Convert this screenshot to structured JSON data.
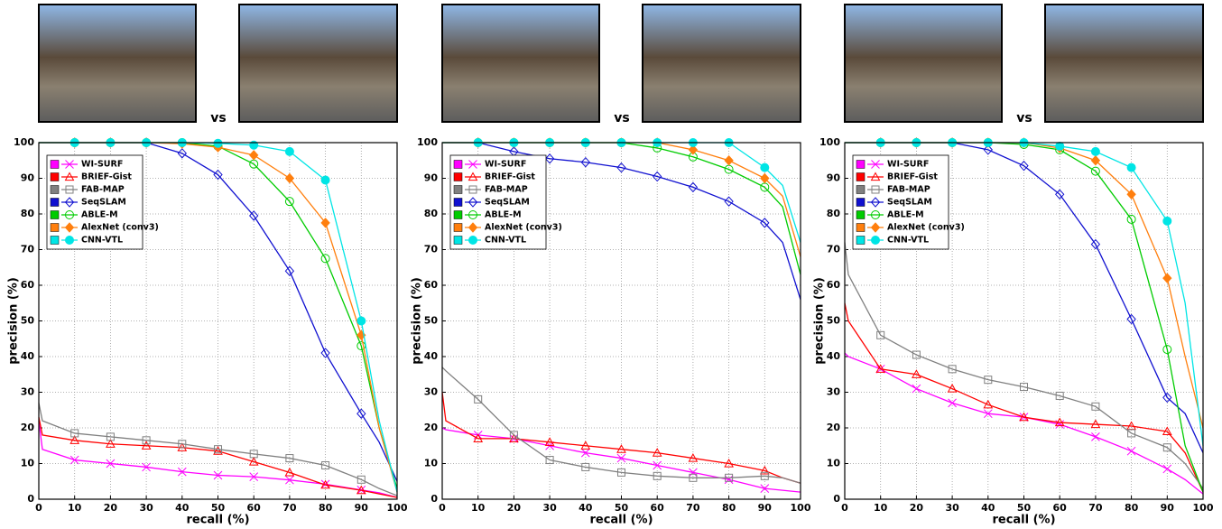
{
  "chart_data": [
    {
      "type": "line",
      "vs_label": "vs",
      "xlabel": "recall (%)",
      "ylabel": "precision (%)",
      "xlim": [
        0,
        100
      ],
      "ylim": [
        0,
        100
      ],
      "xticks": [
        0,
        10,
        20,
        30,
        40,
        50,
        60,
        70,
        80,
        90,
        100
      ],
      "yticks": [
        0,
        10,
        20,
        30,
        40,
        50,
        60,
        70,
        80,
        90,
        100
      ],
      "grid": true,
      "legend": "upper left",
      "x": [
        0,
        1,
        10,
        20,
        30,
        40,
        50,
        60,
        70,
        80,
        90,
        95,
        100
      ],
      "series": [
        {
          "name": "WI-SURF",
          "color": "#ff00ff",
          "marker": "x",
          "values": [
            22,
            14,
            11,
            10,
            9,
            7.7,
            6.7,
            6.3,
            5.4,
            4.2,
            2.6,
            1.8,
            0.5
          ]
        },
        {
          "name": "BRIEF-Gist",
          "color": "#ff0000",
          "marker": "triangle",
          "values": [
            23,
            18,
            16.5,
            15.5,
            15,
            14.5,
            13.5,
            10.5,
            7.5,
            4,
            2.5,
            1.5,
            0.5
          ]
        },
        {
          "name": "FAB-MAP",
          "color": "#808080",
          "marker": "square",
          "values": [
            27,
            22,
            18.5,
            17.5,
            16.5,
            15.5,
            14,
            12.7,
            11.5,
            9.5,
            5.5,
            3,
            1
          ]
        },
        {
          "name": "SeqSLAM",
          "color": "#1010d0",
          "marker": "diamond",
          "values": [
            100,
            100,
            100,
            100,
            100,
            97,
            91,
            79.5,
            64,
            41,
            24,
            16,
            5
          ]
        },
        {
          "name": "ABLE-M",
          "color": "#00cc00",
          "marker": "circle",
          "values": [
            100,
            100,
            100,
            100,
            100,
            100,
            99,
            94,
            83.5,
            67.5,
            43,
            20,
            3
          ]
        },
        {
          "name": "AlexNet (conv3)",
          "color": "#ff7f0e",
          "marker": "diamond-filled",
          "values": [
            100,
            100,
            100,
            100,
            100,
            99.7,
            98.7,
            96.5,
            90,
            77.5,
            46,
            20,
            2
          ]
        },
        {
          "name": "CNN-VTL",
          "color": "#00e5e5",
          "marker": "circle-filled",
          "values": [
            100,
            100,
            100,
            100,
            100,
            100,
            99.8,
            99.3,
            97.5,
            89.5,
            50,
            22,
            2
          ]
        }
      ]
    },
    {
      "type": "line",
      "vs_label": "vs",
      "xlabel": "recall (%)",
      "ylabel": "precision (%)",
      "xlim": [
        0,
        100
      ],
      "ylim": [
        0,
        100
      ],
      "xticks": [
        0,
        10,
        20,
        30,
        40,
        50,
        60,
        70,
        80,
        90,
        100
      ],
      "yticks": [
        0,
        10,
        20,
        30,
        40,
        50,
        60,
        70,
        80,
        90,
        100
      ],
      "grid": true,
      "legend": "upper left",
      "x": [
        0,
        1,
        10,
        20,
        30,
        40,
        50,
        60,
        70,
        80,
        90,
        95,
        100
      ],
      "series": [
        {
          "name": "WI-SURF",
          "color": "#ff00ff",
          "marker": "x",
          "values": [
            20,
            19.5,
            18,
            17,
            15,
            13,
            11.5,
            9.5,
            7.5,
            5.5,
            3,
            2.5,
            2
          ]
        },
        {
          "name": "BRIEF-Gist",
          "color": "#ff0000",
          "marker": "triangle",
          "values": [
            30,
            22,
            17,
            17,
            16,
            15,
            14,
            13,
            11.5,
            10,
            8,
            6,
            4.5
          ]
        },
        {
          "name": "FAB-MAP",
          "color": "#808080",
          "marker": "square",
          "values": [
            37,
            36,
            28,
            18,
            11,
            9,
            7.5,
            6.5,
            6,
            6,
            6.5,
            6,
            4.5
          ]
        },
        {
          "name": "SeqSLAM",
          "color": "#1010d0",
          "marker": "diamond",
          "values": [
            100,
            100,
            100,
            97.5,
            95.5,
            94.5,
            93,
            90.5,
            87.5,
            83.5,
            77.5,
            72,
            56
          ]
        },
        {
          "name": "ABLE-M",
          "color": "#00cc00",
          "marker": "circle",
          "values": [
            100,
            100,
            100,
            100,
            100,
            100,
            100,
            98.5,
            96,
            92.5,
            87.5,
            82,
            63
          ]
        },
        {
          "name": "AlexNet (conv3)",
          "color": "#ff7f0e",
          "marker": "diamond-filled",
          "values": [
            100,
            100,
            100,
            100,
            100,
            100,
            100,
            100,
            98,
            95,
            90,
            85,
            68
          ]
        },
        {
          "name": "CNN-VTL",
          "color": "#00e5e5",
          "marker": "circle-filled",
          "values": [
            100,
            100,
            100,
            100,
            100,
            100,
            100,
            100,
            100,
            100,
            93,
            88,
            72
          ]
        }
      ]
    },
    {
      "type": "line",
      "vs_label": "vs",
      "xlabel": "recall (%)",
      "ylabel": "precision (%)",
      "xlim": [
        0,
        100
      ],
      "ylim": [
        0,
        100
      ],
      "xticks": [
        0,
        10,
        20,
        30,
        40,
        50,
        60,
        70,
        80,
        90,
        100
      ],
      "yticks": [
        0,
        10,
        20,
        30,
        40,
        50,
        60,
        70,
        80,
        90,
        100
      ],
      "grid": true,
      "legend": "upper left",
      "x": [
        0,
        1,
        10,
        20,
        30,
        40,
        50,
        60,
        70,
        80,
        90,
        95,
        100
      ],
      "series": [
        {
          "name": "WI-SURF",
          "color": "#ff00ff",
          "marker": "x",
          "values": [
            41,
            40,
            36.5,
            31,
            27,
            24,
            23,
            21,
            17.5,
            13.5,
            8.5,
            5.5,
            1.5
          ]
        },
        {
          "name": "BRIEF-Gist",
          "color": "#ff0000",
          "marker": "triangle",
          "values": [
            55,
            50,
            36.5,
            35,
            31,
            26.5,
            23,
            21.5,
            21,
            20.5,
            19,
            13,
            2
          ]
        },
        {
          "name": "FAB-MAP",
          "color": "#808080",
          "marker": "square",
          "values": [
            72,
            63,
            46,
            40.5,
            36.5,
            33.5,
            31.5,
            29,
            26,
            18.5,
            14.5,
            10,
            3
          ]
        },
        {
          "name": "SeqSLAM",
          "color": "#1010d0",
          "marker": "diamond",
          "values": [
            100,
            100,
            100,
            100,
            100,
            98,
            93.5,
            85.5,
            71.5,
            50.5,
            28.5,
            24,
            13
          ]
        },
        {
          "name": "ABLE-M",
          "color": "#00cc00",
          "marker": "circle",
          "values": [
            100,
            100,
            100,
            100,
            100,
            100,
            99.5,
            98,
            92,
            78.5,
            42,
            15,
            2
          ]
        },
        {
          "name": "AlexNet (conv3)",
          "color": "#ff7f0e",
          "marker": "diamond-filled",
          "values": [
            100,
            100,
            100,
            100,
            100,
            100,
            100,
            98.5,
            95,
            85.5,
            62,
            40,
            20
          ]
        },
        {
          "name": "CNN-VTL",
          "color": "#00e5e5",
          "marker": "circle-filled",
          "values": [
            100,
            100,
            100,
            100,
            100,
            100,
            100,
            99,
            97.5,
            93,
            78,
            55,
            15
          ]
        }
      ]
    }
  ]
}
